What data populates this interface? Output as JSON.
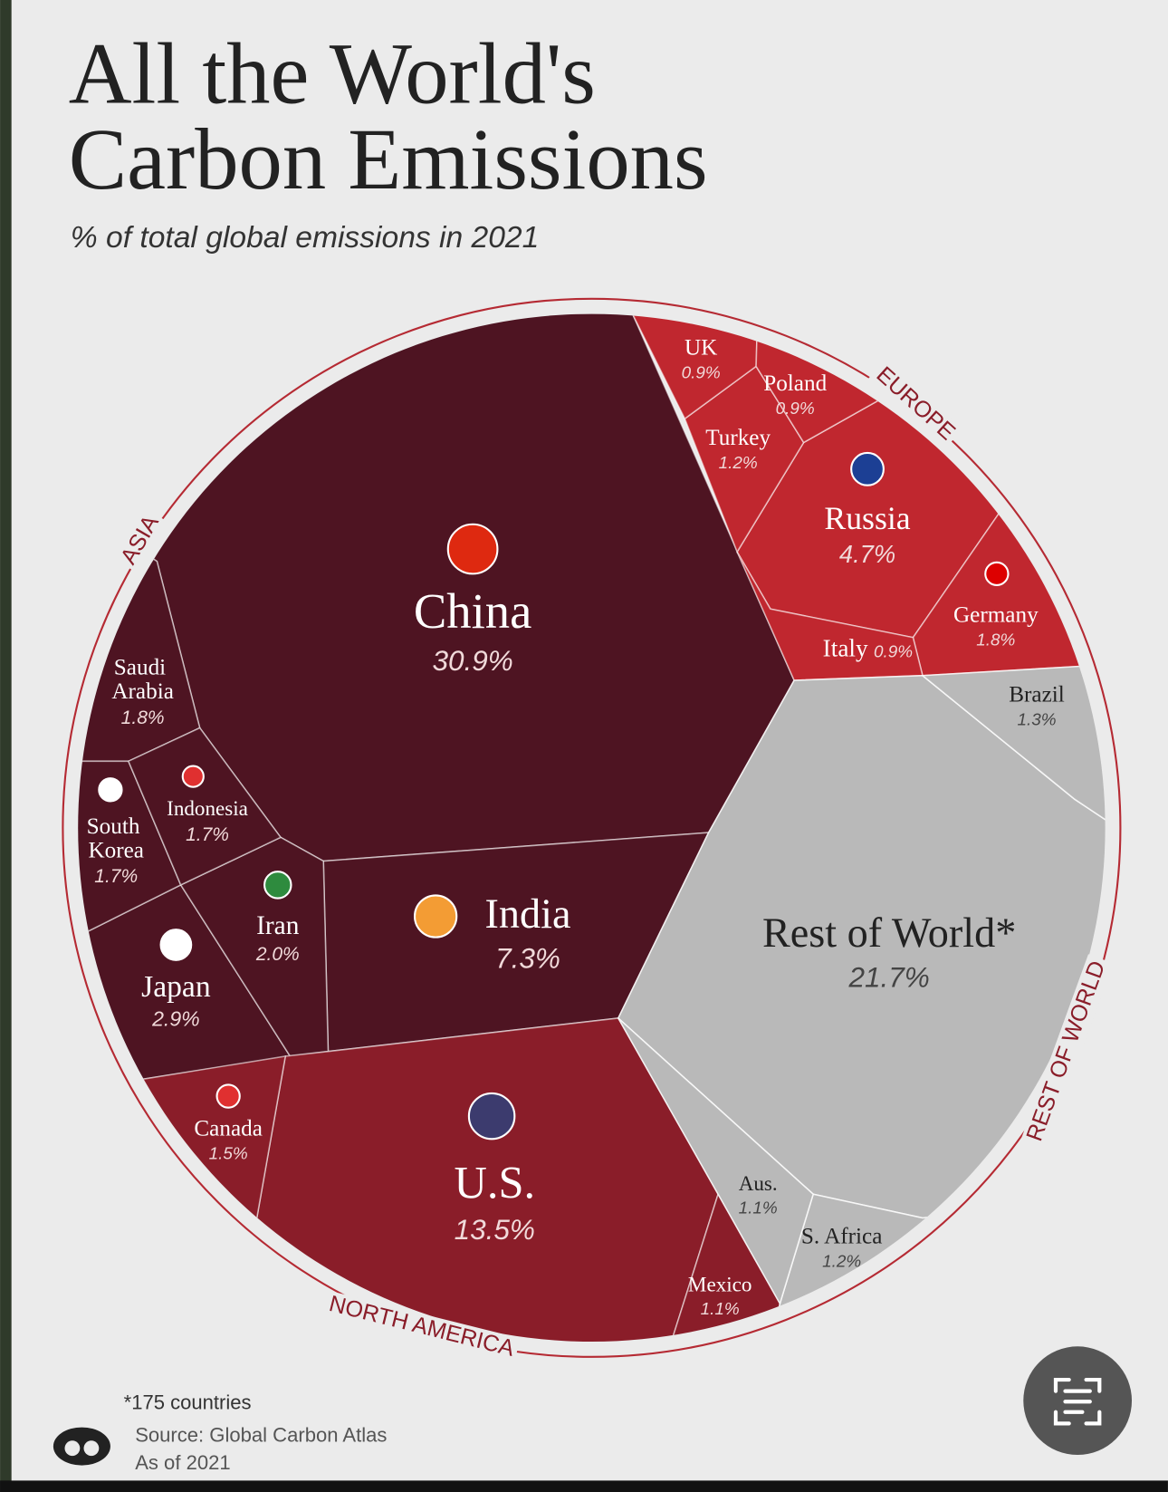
{
  "chart_data": {
    "type": "voronoi-treemap",
    "title": "All the World's Carbon Emissions",
    "subtitle": "% of total global emissions in 2021",
    "groups": [
      {
        "name": "ASIA",
        "color": "#4e1422",
        "categories": [
          "China",
          "India",
          "Japan",
          "Iran",
          "Saudi Arabia",
          "South Korea",
          "Indonesia"
        ],
        "values": [
          30.9,
          7.3,
          2.9,
          2.0,
          1.8,
          1.7,
          1.7
        ],
        "value_labels": [
          "30.9%",
          "7.3%",
          "2.9%",
          "2.0%",
          "1.8%",
          "1.7%",
          "1.7%"
        ]
      },
      {
        "name": "NORTH AMERICA",
        "color": "#8a1d29",
        "categories": [
          "U.S.",
          "Canada",
          "Mexico"
        ],
        "values": [
          13.5,
          1.5,
          1.1
        ],
        "value_labels": [
          "13.5%",
          "1.5%",
          "1.1%"
        ]
      },
      {
        "name": "EUROPE",
        "color": "#c0272f",
        "categories": [
          "Russia",
          "Germany",
          "Turkey",
          "UK",
          "Poland",
          "Italy"
        ],
        "values": [
          4.7,
          1.8,
          1.2,
          0.9,
          0.9,
          0.9
        ],
        "value_labels": [
          "4.7%",
          "1.8%",
          "1.2%",
          "0.9%",
          "0.9%",
          "0.9%"
        ]
      },
      {
        "name": "REST OF WORLD",
        "color": "#b9b9b9",
        "categories": [
          "Rest of World*",
          "Brazil",
          "S. Africa",
          "Aus."
        ],
        "values": [
          21.7,
          1.3,
          1.2,
          1.1
        ],
        "value_labels": [
          "21.7%",
          "1.3%",
          "1.2%",
          "1.1%"
        ]
      }
    ],
    "footnote": "*175 countries",
    "source": "Source: Global Carbon Atlas",
    "as_of": "As of 2021"
  }
}
